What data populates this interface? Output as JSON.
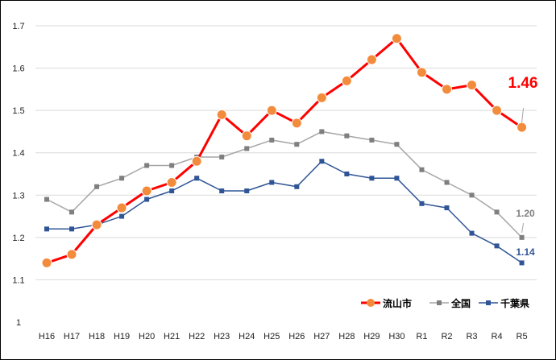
{
  "chart_data": {
    "type": "line",
    "categories": [
      "H16",
      "H17",
      "H18",
      "H19",
      "H20",
      "H21",
      "H22",
      "H23",
      "H24",
      "H25",
      "H26",
      "H27",
      "H28",
      "H29",
      "H30",
      "R1",
      "R2",
      "R3",
      "R4",
      "R5"
    ],
    "ylim": [
      1,
      1.7
    ],
    "yticks": [
      "1",
      "1.1",
      "1.2",
      "1.3",
      "1.4",
      "1.5",
      "1.6",
      "1.7"
    ],
    "grid": true,
    "legend_position": "bottom-right",
    "series": [
      {
        "name": "流山市",
        "color": "#FF0000",
        "marker_color": "#F28C3C",
        "marker": "circle",
        "values": [
          1.14,
          1.16,
          1.23,
          1.27,
          1.31,
          1.33,
          1.38,
          1.49,
          1.44,
          1.5,
          1.47,
          1.53,
          1.57,
          1.62,
          1.67,
          1.59,
          1.55,
          1.56,
          1.5,
          1.46
        ]
      },
      {
        "name": "全国",
        "color": "#A6A6A6",
        "marker_color": "#7F7F7F",
        "marker": "square",
        "values": [
          1.29,
          1.26,
          1.32,
          1.34,
          1.37,
          1.37,
          1.39,
          1.39,
          1.41,
          1.43,
          1.42,
          1.45,
          1.44,
          1.43,
          1.42,
          1.36,
          1.33,
          1.3,
          1.26,
          1.2
        ]
      },
      {
        "name": "千葉県",
        "color": "#2F5597",
        "marker_color": "#2F5597",
        "marker": "square",
        "values": [
          1.22,
          1.22,
          1.23,
          1.25,
          1.29,
          1.31,
          1.34,
          1.31,
          1.31,
          1.33,
          1.32,
          1.38,
          1.35,
          1.34,
          1.34,
          1.28,
          1.27,
          1.21,
          1.18,
          1.14
        ]
      }
    ],
    "annotations": [
      {
        "series": 0,
        "text": "1.46",
        "color": "#FF0000"
      },
      {
        "series": 1,
        "text": "1.20",
        "color": "#7F7F7F"
      },
      {
        "series": 2,
        "text": "1.14",
        "color": "#2F5597"
      }
    ]
  }
}
